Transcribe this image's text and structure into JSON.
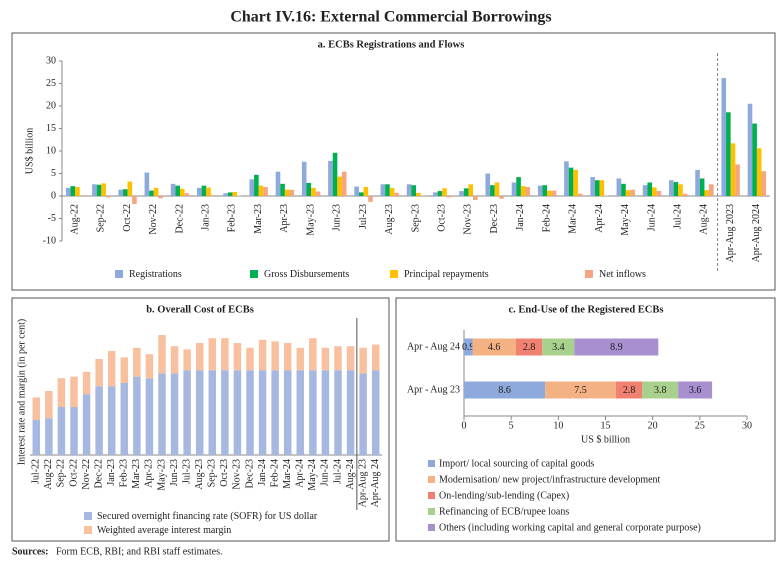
{
  "title": "Chart IV.16: External Commercial Borrowings",
  "footnote": {
    "label": "Sources:",
    "text": "Form ECB, RBI; and RBI staff estimates."
  },
  "chart_data": [
    {
      "type": "bar",
      "title": "a. ECBs Registrations and Flows",
      "y_label": "US$ billion",
      "categories": [
        "Aug-22",
        "Sep-22",
        "Oct-22",
        "Nov-22",
        "Dec-22",
        "Jan-23",
        "Feb-23",
        "Mar-23",
        "Apr-23",
        "May-23",
        "Jun-23",
        "Jul-23",
        "Aug-23",
        "Sep-23",
        "Oct-23",
        "Nov-23",
        "Dec-23",
        "Jan-24",
        "Feb-24",
        "Mar-24",
        "Apr-24",
        "May-24",
        "Jun-24",
        "Jul-24",
        "Aug-24",
        "Apr-Aug 2023",
        "Apr-Aug 2024"
      ],
      "series": [
        {
          "name": "Registrations",
          "color": "#8ea9db",
          "values": [
            1.8,
            2.6,
            1.4,
            5.2,
            2.7,
            1.8,
            0.6,
            3.7,
            5.4,
            7.6,
            7.8,
            2.1,
            2.6,
            2.6,
            0.8,
            1.1,
            5.0,
            3.0,
            2.3,
            7.7,
            4.2,
            3.9,
            2.4,
            3.5,
            5.8,
            26.2,
            20.5
          ]
        },
        {
          "name": "Gross Disbursements",
          "color": "#00b050",
          "values": [
            2.2,
            2.5,
            1.5,
            1.2,
            2.3,
            2.3,
            0.8,
            4.7,
            2.7,
            2.9,
            9.6,
            0.8,
            2.6,
            2.4,
            1.1,
            1.7,
            2.4,
            4.2,
            2.4,
            6.3,
            3.5,
            2.7,
            3.0,
            3.1,
            3.9,
            18.6,
            16.1
          ]
        },
        {
          "name": "Principal repayments",
          "color": "#ffc000",
          "values": [
            2.0,
            2.8,
            3.2,
            1.8,
            1.6,
            1.9,
            0.9,
            2.3,
            1.4,
            1.8,
            4.3,
            2.0,
            1.8,
            0.7,
            1.7,
            2.6,
            3.0,
            2.2,
            1.2,
            5.8,
            3.5,
            1.3,
            1.9,
            2.6,
            1.3,
            11.7,
            10.6
          ]
        },
        {
          "name": "Net inflows",
          "color": "#f4a582",
          "values": [
            0.2,
            -0.3,
            -1.8,
            -0.5,
            0.6,
            0.2,
            0.1,
            2.0,
            1.4,
            1.0,
            5.4,
            -1.3,
            0.7,
            0.1,
            -0.3,
            -0.9,
            -0.6,
            2.0,
            1.2,
            0.5,
            0.1,
            1.4,
            1.1,
            0.5,
            2.6,
            7.0,
            5.5
          ]
        }
      ],
      "ylim": [
        -10,
        30
      ],
      "yticks": [
        -10,
        -5,
        0,
        5,
        10,
        15,
        20,
        25,
        30
      ],
      "grid": false
    },
    {
      "type": "stacked",
      "title": "b. Overall Cost of ECBs",
      "y_label": "Interest rate and margin (in per cent)",
      "categories": [
        "Jul-22",
        "Aug-22",
        "Sep-22",
        "Oct-22",
        "Nov-22",
        "Dec-22",
        "Jan-23",
        "Feb-23",
        "Mar-23",
        "Apr-23",
        "May-23",
        "Jun-23",
        "Jul-23",
        "Aug-23",
        "Sep-23",
        "Oct-23",
        "Nov-23",
        "Dec-23",
        "Jan-24",
        "Feb-24",
        "Mar-24",
        "Apr-24",
        "May-24",
        "Jun-24",
        "Jul-24",
        "Aug-24",
        "Apr-Aug 23",
        "Apr-Aug 24"
      ],
      "series": [
        {
          "name": "Secured overnight financing rate (SOFR) for US dollar",
          "color": "#a6b8e0",
          "values": [
            2.2,
            2.3,
            3.0,
            3.0,
            3.8,
            4.3,
            4.3,
            4.5,
            4.9,
            4.8,
            5.1,
            5.1,
            5.3,
            5.3,
            5.3,
            5.3,
            5.3,
            5.3,
            5.3,
            5.3,
            5.3,
            5.3,
            5.3,
            5.3,
            5.3,
            5.3,
            5.1,
            5.3
          ]
        },
        {
          "name": "Weighted average interest margin",
          "color": "#f8c09e",
          "values": [
            1.4,
            1.7,
            1.8,
            1.9,
            1.4,
            1.7,
            2.2,
            1.6,
            1.8,
            1.5,
            2.4,
            1.7,
            1.3,
            1.7,
            2.0,
            2.0,
            1.7,
            1.4,
            1.9,
            1.8,
            1.7,
            1.4,
            2.0,
            1.4,
            1.5,
            1.5,
            1.6,
            1.6
          ]
        }
      ],
      "ylim": [
        0,
        8
      ]
    },
    {
      "type": "barh",
      "title": "c. End-Use of the Registered ECBs",
      "x_label": "US $ billion",
      "categories": [
        "Apr - Aug 24",
        "Apr - Aug 23"
      ],
      "series": [
        {
          "name": "Import/ local sourcing of capital goods",
          "color": "#8ea9db",
          "values": [
            0.9,
            8.6
          ]
        },
        {
          "name": "Modernisation/ new project/infrastructure development",
          "color": "#f4b183",
          "values": [
            4.6,
            7.5
          ]
        },
        {
          "name": "On-lending/sub-lending (Capex)",
          "color": "#f08070",
          "values": [
            2.8,
            2.8
          ]
        },
        {
          "name": "Refinancing of ECB/rupee loans",
          "color": "#a9d18e",
          "values": [
            3.4,
            3.8
          ]
        },
        {
          "name": "Others (including working capital and general corporate purpose)",
          "color": "#a88fd0",
          "values": [
            8.9,
            3.6
          ]
        }
      ],
      "xlim": [
        0,
        30
      ],
      "xticks": [
        0,
        5,
        10,
        15,
        20,
        25,
        30
      ]
    }
  ]
}
